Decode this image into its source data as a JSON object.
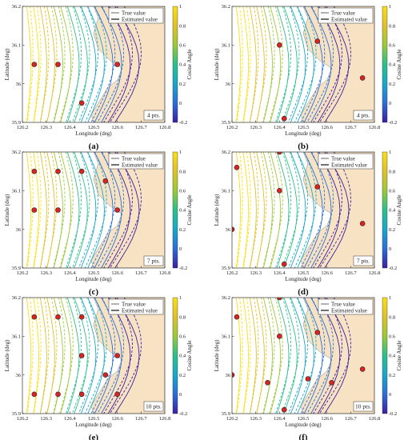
{
  "chart_data": [
    {
      "panel": "(a)",
      "type": "contour",
      "xlabel": "Longitude (deg)",
      "ylabel": "Latitude (deg)",
      "colorbar_label": "Cosine Angle",
      "xlim": [
        126.2,
        126.8
      ],
      "ylim": [
        35.9,
        36.2
      ],
      "xticks": [
        "126.2",
        "126.3",
        "126.4",
        "126.5",
        "126.6",
        "126.7",
        "126.8"
      ],
      "yticks": [
        "35.9",
        "36",
        "36.1",
        "36.2"
      ],
      "cbar_ticks": [
        "-0.2",
        "0",
        "0.2",
        "0.4",
        "0.6",
        "0.8",
        "1"
      ],
      "legend": [
        "True value",
        "Estimated value"
      ],
      "points_label": "4 pts.",
      "points": [
        [
          126.25,
          36.05
        ],
        [
          126.35,
          36.05
        ],
        [
          126.6,
          36.05
        ],
        [
          126.45,
          35.95
        ]
      ]
    },
    {
      "panel": "(b)",
      "type": "contour",
      "xlabel": "Longitude (deg)",
      "ylabel": "Latitude (deg)",
      "colorbar_label": "Cosine Angle",
      "xlim": [
        126.2,
        126.8
      ],
      "ylim": [
        35.9,
        36.2
      ],
      "xticks": [
        "126.2",
        "126.3",
        "126.4",
        "126.5",
        "126.6",
        "126.7",
        "126.8"
      ],
      "yticks": [
        "35.9",
        "36",
        "36.1",
        "36.2"
      ],
      "cbar_ticks": [
        "-0.2",
        "0",
        "0.2",
        "0.4",
        "0.6",
        "0.8",
        "1"
      ],
      "legend": [
        "True value",
        "Estimated value"
      ],
      "points_label": "4 pts.",
      "points": [
        [
          126.4,
          36.1
        ],
        [
          126.56,
          36.11
        ],
        [
          126.75,
          36.015
        ],
        [
          126.42,
          35.91
        ]
      ]
    },
    {
      "panel": "(c)",
      "type": "contour",
      "xlabel": "Longitude (deg)",
      "ylabel": "Latitude (deg)",
      "colorbar_label": "Cosine Angle",
      "xlim": [
        126.2,
        126.8
      ],
      "ylim": [
        35.9,
        36.2
      ],
      "xticks": [
        "126.2",
        "126.3",
        "126.4",
        "126.5",
        "126.6",
        "126.7",
        "126.8"
      ],
      "yticks": [
        "35.9",
        "36",
        "36.1",
        "36.2"
      ],
      "cbar_ticks": [
        "-0.2",
        "0",
        "0.2",
        "0.4",
        "0.6",
        "0.8",
        "1"
      ],
      "legend": [
        "True value",
        "Estimated value"
      ],
      "points_label": "7 pts.",
      "points": [
        [
          126.25,
          36.15
        ],
        [
          126.35,
          36.15
        ],
        [
          126.45,
          36.15
        ],
        [
          126.55,
          36.125
        ],
        [
          126.25,
          36.05
        ],
        [
          126.35,
          36.05
        ],
        [
          126.6,
          36.05
        ]
      ]
    },
    {
      "panel": "(d)",
      "type": "contour",
      "xlabel": "Longitude (deg)",
      "ylabel": "Latitude (deg)",
      "colorbar_label": "Cosine Angle",
      "xlim": [
        126.2,
        126.8
      ],
      "ylim": [
        35.9,
        36.2
      ],
      "xticks": [
        "126.2",
        "126.3",
        "126.4",
        "126.5",
        "126.6",
        "126.7",
        "126.8"
      ],
      "yticks": [
        "35.9",
        "36",
        "36.1",
        "36.2"
      ],
      "cbar_ticks": [
        "-0.2",
        "0",
        "0.2",
        "0.4",
        "0.6",
        "0.8",
        "1"
      ],
      "legend": [
        "True value",
        "Estimated value"
      ],
      "points_label": "7 pts.",
      "points": [
        [
          126.4,
          36.2
        ],
        [
          126.22,
          36.16
        ],
        [
          126.4,
          36.1
        ],
        [
          126.56,
          36.11
        ],
        [
          126.2,
          36.0
        ],
        [
          126.75,
          36.015
        ],
        [
          126.42,
          35.91
        ]
      ]
    },
    {
      "panel": "(e)",
      "type": "contour",
      "xlabel": "Longitude (deg)",
      "ylabel": "Latitude (deg)",
      "colorbar_label": "Cosine Angle",
      "xlim": [
        126.2,
        126.8
      ],
      "ylim": [
        35.9,
        36.2
      ],
      "xticks": [
        "126.2",
        "126.3",
        "126.4",
        "126.5",
        "126.6",
        "126.7",
        "126.8"
      ],
      "yticks": [
        "35.9",
        "36",
        "36.1",
        "36.2"
      ],
      "cbar_ticks": [
        "-0.2",
        "0",
        "0.2",
        "0.4",
        "0.6",
        "0.8",
        "1"
      ],
      "legend": [
        "True value",
        "Estimated value"
      ],
      "points_label": "10 pts.",
      "points": [
        [
          126.25,
          36.15
        ],
        [
          126.35,
          36.15
        ],
        [
          126.45,
          36.15
        ],
        [
          126.45,
          36.05
        ],
        [
          126.55,
          36.0
        ],
        [
          126.6,
          36.05
        ],
        [
          126.25,
          35.95
        ],
        [
          126.35,
          35.95
        ],
        [
          126.45,
          35.95
        ],
        [
          126.6,
          35.95
        ]
      ]
    },
    {
      "panel": "(f)",
      "type": "contour",
      "xlabel": "Longitude (deg)",
      "ylabel": "Latitude (deg)",
      "colorbar_label": "Cosine Angle",
      "xlim": [
        126.2,
        126.8
      ],
      "ylim": [
        35.9,
        36.2
      ],
      "xticks": [
        "126.2",
        "126.3",
        "126.4",
        "126.5",
        "126.6",
        "126.7",
        "126.8"
      ],
      "yticks": [
        "35.9",
        "36",
        "36.1",
        "36.2"
      ],
      "cbar_ticks": [
        "-0.2",
        "0",
        "0.2",
        "0.4",
        "0.6",
        "0.8",
        "1"
      ],
      "legend": [
        "True value",
        "Estimated value"
      ],
      "points_label": "10 pts.",
      "points": [
        [
          126.4,
          36.2
        ],
        [
          126.22,
          36.15
        ],
        [
          126.4,
          36.1
        ],
        [
          126.56,
          36.11
        ],
        [
          126.2,
          36.0
        ],
        [
          126.35,
          35.98
        ],
        [
          126.52,
          35.99
        ],
        [
          126.62,
          35.98
        ],
        [
          126.75,
          36.015
        ],
        [
          126.42,
          35.91
        ]
      ]
    }
  ],
  "colors": {
    "land": "#f7e2c3",
    "marker": "#dd2222",
    "colormap": [
      "#3b1fa0",
      "#2b6fd6",
      "#1aa8c8",
      "#2bbf8a",
      "#9dc83a",
      "#e0c12a",
      "#f9e01a"
    ]
  }
}
